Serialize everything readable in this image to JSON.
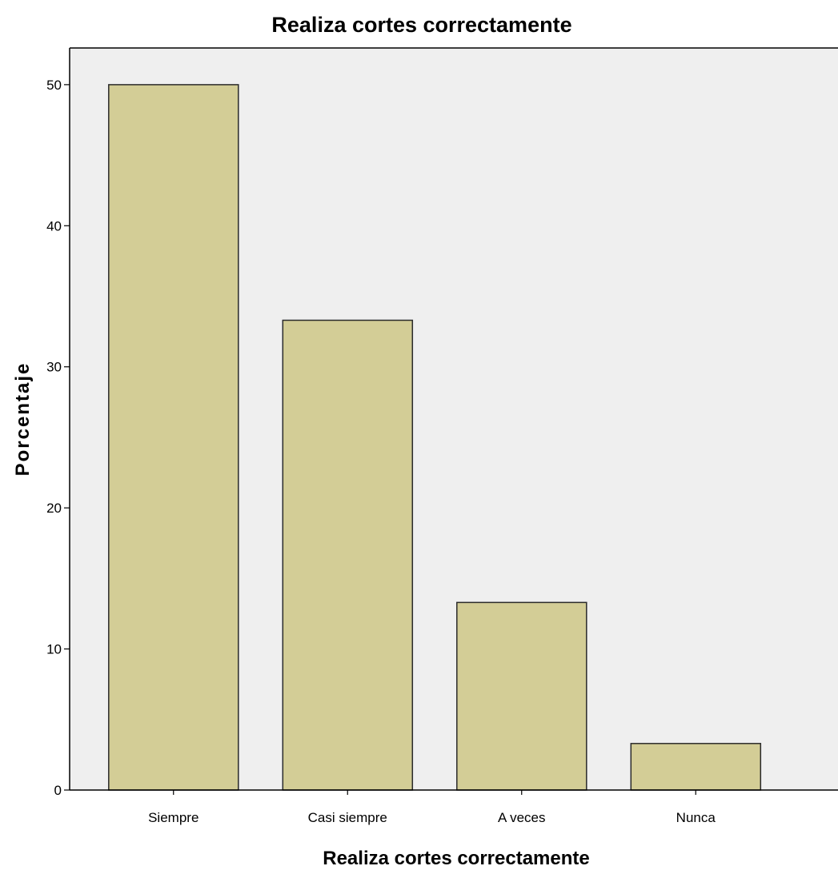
{
  "chart_data": {
    "type": "bar",
    "title": "Realiza cortes correctamente",
    "xlabel": "Realiza cortes correctamente",
    "ylabel": "Porcentaje",
    "categories": [
      "Siempre",
      "Casi siempre",
      "A veces",
      "Nunca"
    ],
    "values": [
      50.0,
      33.3,
      13.3,
      3.3
    ],
    "ylim": [
      0,
      52.6
    ],
    "yticks": [
      0,
      10,
      20,
      30,
      40,
      50
    ],
    "grid": false,
    "colors": {
      "bar_fill": "#d3cd96",
      "bar_stroke": "#2a2a2a",
      "plot_background": "#efefef",
      "axis": "#000000"
    }
  }
}
